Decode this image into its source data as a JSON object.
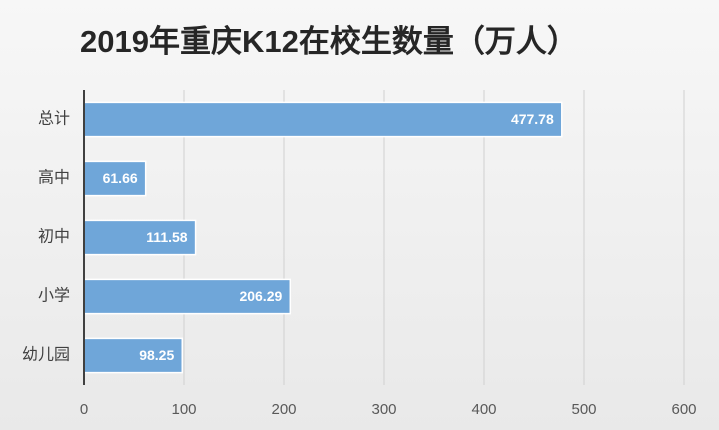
{
  "chart_data": {
    "type": "bar",
    "orientation": "horizontal",
    "title": "2019年重庆K12在校生数量（万人）",
    "categories": [
      "总计",
      "高中",
      "初中",
      "小学",
      "幼儿园"
    ],
    "values": [
      477.78,
      61.66,
      111.58,
      206.29,
      98.25
    ],
    "color": "#6fa6d9",
    "xlim": [
      0,
      600
    ],
    "xticks": [
      0,
      100,
      200,
      300,
      400,
      500,
      600
    ],
    "grid": true
  }
}
